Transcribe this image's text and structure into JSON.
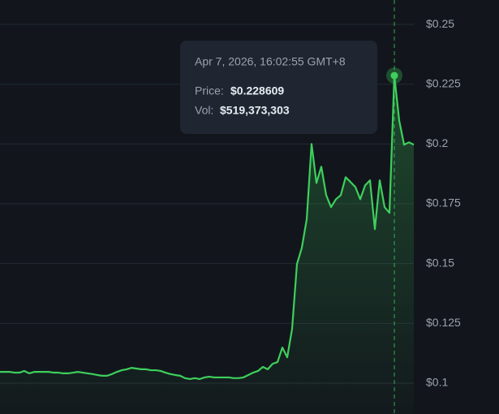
{
  "chart_data": {
    "type": "line",
    "color": "#3ecf5c",
    "ylim": [
      0.0871,
      0.2602
    ],
    "yticks": [
      {
        "value": 0.1,
        "label": "$0.1"
      },
      {
        "value": 0.125,
        "label": "$0.125"
      },
      {
        "value": 0.15,
        "label": "$0.15"
      },
      {
        "value": 0.175,
        "label": "$0.175"
      },
      {
        "value": 0.2,
        "label": "$0.2"
      },
      {
        "value": 0.225,
        "label": "$0.225"
      },
      {
        "value": 0.25,
        "label": "$0.25"
      }
    ],
    "grid": true,
    "values": [
      0.1047,
      0.1047,
      0.1047,
      0.1044,
      0.1044,
      0.1051,
      0.1041,
      0.1047,
      0.1047,
      0.1047,
      0.1047,
      0.1044,
      0.1044,
      0.1041,
      0.1041,
      0.1044,
      0.1047,
      0.1044,
      0.1041,
      0.1038,
      0.1034,
      0.1031,
      0.1031,
      0.1038,
      0.1047,
      0.1054,
      0.1058,
      0.1064,
      0.1061,
      0.1058,
      0.1058,
      0.1054,
      0.1054,
      0.1051,
      0.1044,
      0.1038,
      0.1034,
      0.1031,
      0.1021,
      0.1017,
      0.1021,
      0.1017,
      0.1024,
      0.1027,
      0.1024,
      0.1024,
      0.1024,
      0.1024,
      0.1021,
      0.1021,
      0.1024,
      0.1034,
      0.1044,
      0.1051,
      0.1068,
      0.1058,
      0.1081,
      0.1088,
      0.1149,
      0.1108,
      0.1227,
      0.1498,
      0.1566,
      0.1685,
      0.2,
      0.1837,
      0.1905,
      0.1786,
      0.1736,
      0.1769,
      0.1786,
      0.1861,
      0.1841,
      0.182,
      0.1769,
      0.1827,
      0.1848,
      0.1644,
      0.1848,
      0.1736,
      0.1712,
      0.228609,
      0.2098,
      0.1997,
      0.2007,
      0.1997
    ],
    "tooltip": {
      "date": "Apr 7, 2026, 16:02:55 GMT+8",
      "price_label": "Price:",
      "price": "$0.228609",
      "vol_label": "Vol:",
      "vol": "$519,373,303"
    }
  }
}
